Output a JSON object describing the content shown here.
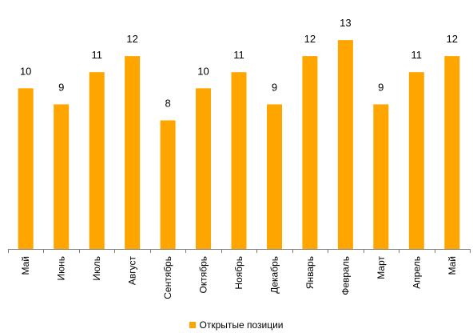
{
  "chart_data": {
    "type": "bar",
    "categories": [
      "Май",
      "Июнь",
      "Июль",
      "Август",
      "Сентябрь",
      "Октябрь",
      "Ноябрь",
      "Декабрь",
      "Январь",
      "Февраль",
      "Март",
      "Апрель",
      "Май"
    ],
    "series": [
      {
        "name": "Открытые позиции",
        "values": [
          10,
          9,
          11,
          12,
          8,
          10,
          11,
          9,
          12,
          13,
          9,
          11,
          12
        ],
        "color": "#FFA500"
      }
    ],
    "title": "",
    "xlabel": "",
    "ylabel": "",
    "ylim": [
      0,
      14.1
    ],
    "grid": false,
    "legend_position": "bottom",
    "data_labels": true
  },
  "legend": {
    "label": "Открытые позиции"
  }
}
